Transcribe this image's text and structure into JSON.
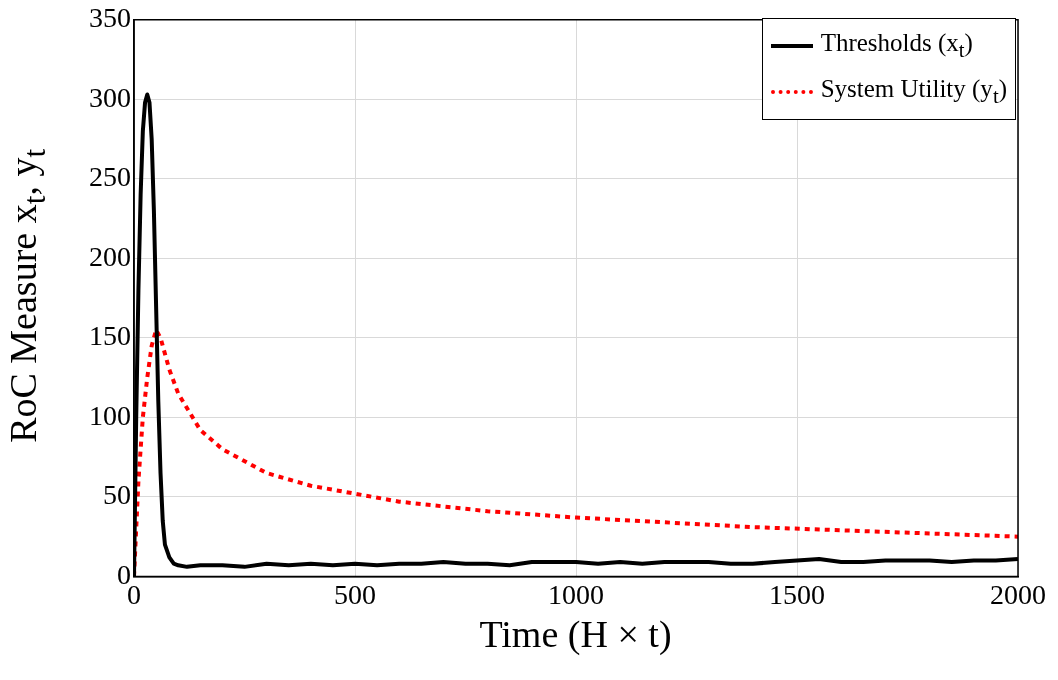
{
  "chart_data": {
    "type": "line",
    "xlabel": "Time (H × t)",
    "ylabel": "RoC Measure x$_{t}$, y$_{t}$",
    "xlim": [
      0,
      2000
    ],
    "xticks": [
      0,
      500,
      1000,
      1500,
      2000
    ],
    "ylim": [
      0,
      350
    ],
    "yticks": [
      0,
      50,
      100,
      150,
      200,
      250,
      300,
      350
    ],
    "grid": true,
    "legend": "top right",
    "marker": "none",
    "series": [
      {
        "name": "Thresholds (x$_{t}$)",
        "color": "#000000",
        "line_style": "solid",
        "x": [
          0,
          5,
          10,
          15,
          20,
          25,
          30,
          35,
          40,
          45,
          50,
          55,
          60,
          65,
          70,
          80,
          90,
          100,
          120,
          150,
          200,
          250,
          300,
          350,
          400,
          450,
          500,
          550,
          600,
          650,
          700,
          750,
          800,
          850,
          900,
          950,
          1000,
          1050,
          1100,
          1150,
          1200,
          1250,
          1300,
          1350,
          1400,
          1450,
          1500,
          1550,
          1600,
          1650,
          1700,
          1750,
          1800,
          1850,
          1900,
          1950,
          2000
        ],
        "values": [
          0,
          100,
          180,
          240,
          280,
          298,
          303,
          298,
          275,
          230,
          170,
          110,
          65,
          35,
          20,
          12,
          8,
          7,
          6,
          7,
          7,
          6,
          8,
          7,
          8,
          7,
          8,
          7,
          8,
          8,
          9,
          8,
          8,
          7,
          9,
          9,
          9,
          8,
          9,
          8,
          9,
          9,
          9,
          8,
          8,
          9,
          10,
          11,
          9,
          9,
          10,
          10,
          10,
          9,
          10,
          10,
          11
        ]
      },
      {
        "name": "System Utility (y$_{t}$)",
        "color": "#ff0000",
        "line_style": "dotted",
        "x": [
          0,
          5,
          10,
          20,
          30,
          40,
          50,
          60,
          80,
          100,
          150,
          200,
          300,
          400,
          500,
          600,
          700,
          800,
          900,
          1000,
          1200,
          1400,
          1600,
          1800,
          2000
        ],
        "values": [
          0,
          30,
          60,
          100,
          125,
          145,
          155,
          150,
          130,
          115,
          92,
          80,
          65,
          57,
          52,
          47,
          44,
          41,
          39,
          37,
          34,
          31,
          29,
          27,
          25
        ]
      }
    ]
  }
}
